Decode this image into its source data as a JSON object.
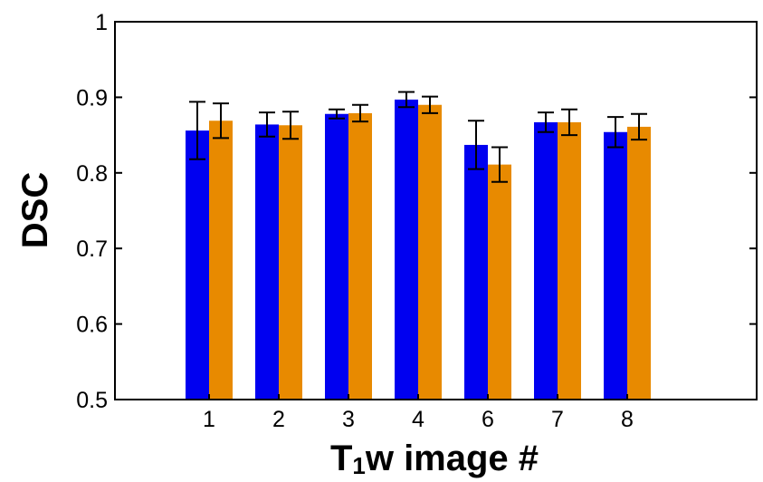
{
  "chart_data": {
    "type": "bar",
    "xlabel_main": "T",
    "xlabel_sub": "1",
    "xlabel_rest": "w image #",
    "ylabel": "DSC",
    "ylim": [
      0.5,
      1.0
    ],
    "yticks": [
      0.5,
      0.6,
      0.7,
      0.8,
      0.9,
      1
    ],
    "ytick_labels": [
      "0.5",
      "0.6",
      "0.7",
      "0.8",
      "0.9",
      "1"
    ],
    "categories": [
      "1",
      "2",
      "3",
      "4",
      "6",
      "7",
      "8"
    ],
    "grid": false,
    "legend": "none",
    "series": [
      {
        "color": "#0000f0",
        "values": [
          0.856,
          0.864,
          0.878,
          0.897,
          0.837,
          0.867,
          0.854
        ],
        "errors": [
          0.038,
          0.016,
          0.006,
          0.01,
          0.032,
          0.013,
          0.02
        ]
      },
      {
        "color": "#e88a00",
        "values": [
          0.869,
          0.863,
          0.879,
          0.89,
          0.811,
          0.867,
          0.861
        ],
        "errors": [
          0.023,
          0.018,
          0.011,
          0.011,
          0.023,
          0.017,
          0.017
        ]
      }
    ]
  }
}
